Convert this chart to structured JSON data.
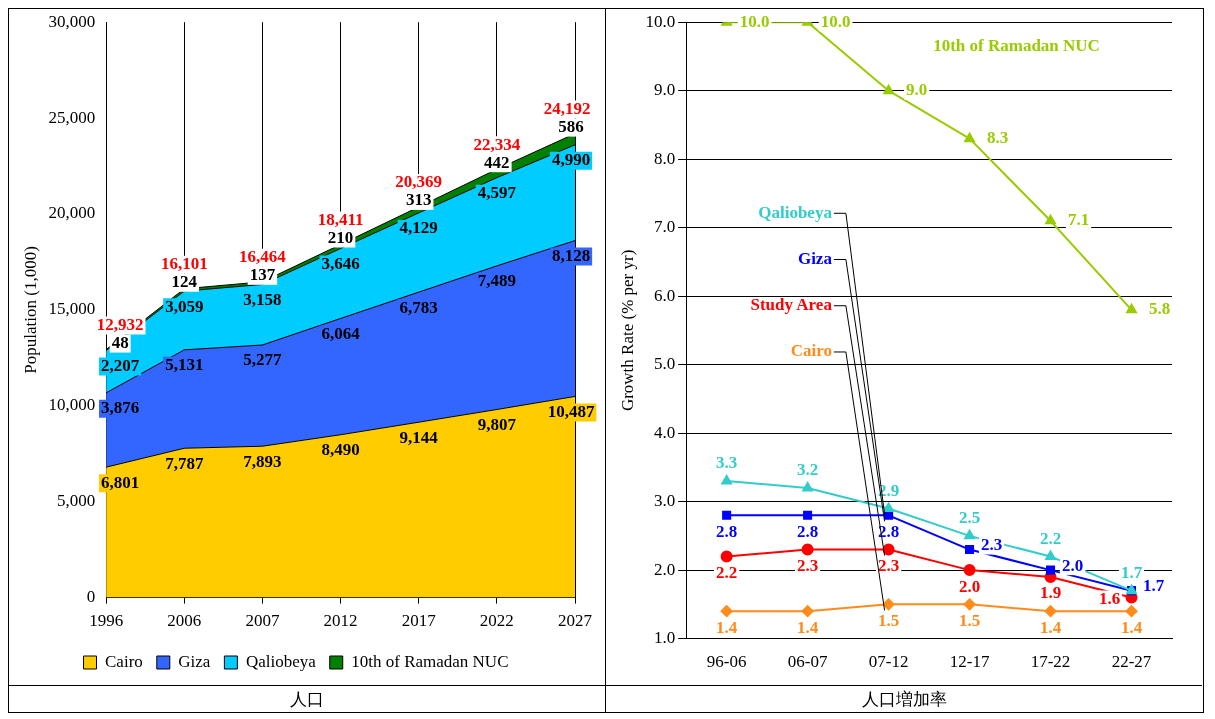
{
  "chart_data": [
    {
      "type": "area",
      "stacked": true,
      "categories": [
        "1996",
        "2006",
        "2007",
        "2012",
        "2017",
        "2022",
        "2027"
      ],
      "ylabel": "Population (1,000)",
      "ylim": [
        0,
        30000
      ],
      "yticks": [
        0,
        {
          "value": 5000,
          "label": "5,000"
        },
        {
          "value": 10000,
          "label": "10,000"
        },
        {
          "value": 15000,
          "label": "15,000"
        },
        {
          "value": 20000,
          "label": "20,000"
        },
        {
          "value": 25000,
          "label": "25,000"
        },
        {
          "value": 30000,
          "label": "30,000"
        }
      ],
      "grid": "x",
      "legend": "bottom",
      "series": [
        {
          "name": "Cairo",
          "color": "#ffcc00",
          "values": [
            6801,
            7787,
            7893,
            8490,
            9144,
            9807,
            10487
          ],
          "value_labels": [
            "6,801",
            "7,787",
            "7,893",
            "8,490",
            "9,144",
            "9,807",
            "10,487"
          ]
        },
        {
          "name": "Giza",
          "color": "#3366ff",
          "values": [
            3876,
            5131,
            5277,
            6064,
            6783,
            7489,
            8128
          ],
          "value_labels": [
            "3,876",
            "5,131",
            "5,277",
            "6,064",
            "6,783",
            "7,489",
            "8,128"
          ]
        },
        {
          "name": "Qaliobeya",
          "color": "#00ccff",
          "values": [
            2207,
            3059,
            3158,
            3646,
            4129,
            4597,
            4990
          ],
          "value_labels": [
            "2,207",
            "3,059",
            "3,158",
            "3,646",
            "4,129",
            "4,597",
            "4,990"
          ]
        },
        {
          "name": "10th of Ramadan NUC",
          "color": "#008000",
          "values": [
            48,
            124,
            137,
            210,
            313,
            442,
            586
          ],
          "value_labels": [
            "48",
            "124",
            "137",
            "210",
            "313",
            "442",
            "586"
          ]
        }
      ],
      "totals": [
        "12,932",
        "16,101",
        "16,464",
        "18,411",
        "20,369",
        "22,334",
        "24,192"
      ],
      "annotations": [
        "人口"
      ]
    },
    {
      "type": "line",
      "categories": [
        "96-06",
        "06-07",
        "07-12",
        "12-17",
        "17-22",
        "22-27"
      ],
      "ylabel": "Growth Rate (% per yr)",
      "ylim": [
        1,
        10
      ],
      "yticks": [
        {
          "value": 1,
          "label": "1.0"
        },
        {
          "value": 2,
          "label": "2.0"
        },
        {
          "value": 3,
          "label": "3.0"
        },
        {
          "value": 4,
          "label": "4.0"
        },
        {
          "value": 5,
          "label": "5.0"
        },
        {
          "value": 6,
          "label": "6.0"
        },
        {
          "value": 7,
          "label": "7.0"
        },
        {
          "value": 8,
          "label": "8.0"
        },
        {
          "value": 9,
          "label": "9.0"
        },
        {
          "value": 10,
          "label": "10.0"
        }
      ],
      "grid": "y",
      "legend": false,
      "series": [
        {
          "name": "10th of Ramadan NUC",
          "color": "#99cc00",
          "marker": "triangle",
          "values": [
            10.0,
            10.0,
            9.0,
            8.3,
            7.1,
            5.8
          ],
          "value_labels": [
            "10.0",
            "10.0",
            "9.0",
            "8.3",
            "7.1",
            "5.8"
          ]
        },
        {
          "name": "Qaliobeya",
          "color": "#33cccc",
          "marker": "triangle",
          "values": [
            3.3,
            3.2,
            2.9,
            2.5,
            2.2,
            1.7
          ],
          "value_labels": [
            "3.3",
            "3.2",
            "2.9",
            "2.5",
            "2.2",
            "1.7"
          ]
        },
        {
          "name": "Giza",
          "color": "#0000ff",
          "marker": "square",
          "values": [
            2.8,
            2.8,
            2.8,
            2.3,
            2.0,
            1.7
          ],
          "value_labels": [
            "2.8",
            "2.8",
            "2.8",
            "2.3",
            "2.0",
            "1.7"
          ]
        },
        {
          "name": "Study Area",
          "color": "#ff0000",
          "marker": "circle",
          "values": [
            2.2,
            2.3,
            2.3,
            2.0,
            1.9,
            1.6
          ],
          "value_labels": [
            "2.2",
            "2.3",
            "2.3",
            "2.0",
            "1.9",
            "1.6"
          ]
        },
        {
          "name": "Cairo",
          "color": "#ff8c1a",
          "marker": "diamond",
          "values": [
            1.4,
            1.4,
            1.5,
            1.5,
            1.4,
            1.4
          ],
          "value_labels": [
            "1.4",
            "1.4",
            "1.5",
            "1.5",
            "1.4",
            "1.4"
          ]
        }
      ],
      "annotations": [
        "人口増加率"
      ]
    }
  ]
}
